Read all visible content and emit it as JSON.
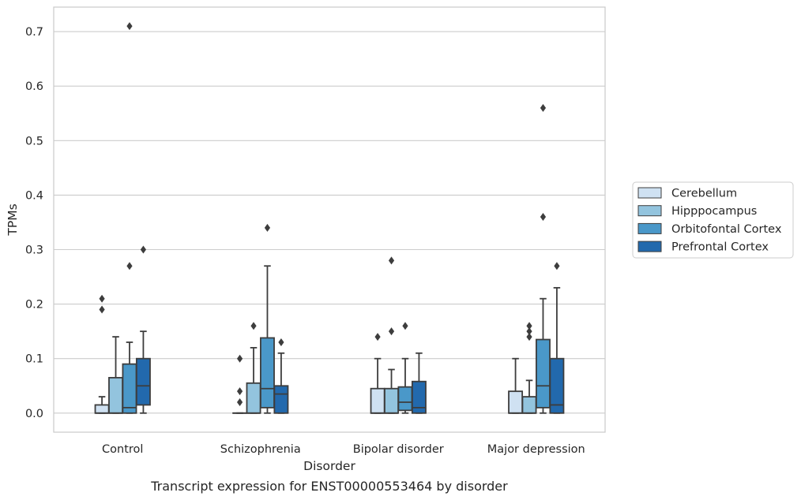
{
  "chart_data": {
    "type": "box",
    "caption": "Transcript expression for ENST00000553464 by disorder",
    "xlabel": "Disorder",
    "ylabel": "TPMs",
    "ylim": [
      -0.035,
      0.745
    ],
    "yticks": [
      0.0,
      0.1,
      0.2,
      0.3,
      0.4,
      0.5,
      0.6,
      0.7
    ],
    "ytick_labels": [
      "0.0",
      "0.1",
      "0.2",
      "0.3",
      "0.4",
      "0.5",
      "0.6",
      "0.7"
    ],
    "grid": "horizontal",
    "legend_placement": "right",
    "categories": [
      "Control",
      "Schizophrenia",
      "Bipolar disorder",
      "Major depression"
    ],
    "series": [
      {
        "name": "Cerebellum",
        "color": "#cfe1f2",
        "boxes": [
          {
            "whisker_low": 0.0,
            "q1": 0.0,
            "median": 0.0,
            "q3": 0.015,
            "whisker_high": 0.03,
            "outliers": [
              0.19,
              0.21
            ]
          },
          {
            "whisker_low": 0.0,
            "q1": 0.0,
            "median": 0.0,
            "q3": 0.0,
            "whisker_high": 0.0,
            "outliers": [
              0.02,
              0.04,
              0.1
            ]
          },
          {
            "whisker_low": 0.0,
            "q1": 0.0,
            "median": 0.0,
            "q3": 0.045,
            "whisker_high": 0.1,
            "outliers": [
              0.14
            ]
          },
          {
            "whisker_low": 0.0,
            "q1": 0.0,
            "median": 0.0,
            "q3": 0.04,
            "whisker_high": 0.1,
            "outliers": []
          }
        ]
      },
      {
        "name": "Hipppocampus",
        "color": "#93c4de",
        "boxes": [
          {
            "whisker_low": 0.0,
            "q1": 0.0,
            "median": 0.0,
            "q3": 0.065,
            "whisker_high": 0.14,
            "outliers": []
          },
          {
            "whisker_low": 0.0,
            "q1": 0.0,
            "median": 0.0,
            "q3": 0.055,
            "whisker_high": 0.12,
            "outliers": [
              0.16
            ]
          },
          {
            "whisker_low": 0.0,
            "q1": 0.0,
            "median": 0.0,
            "q3": 0.045,
            "whisker_high": 0.08,
            "outliers": [
              0.15,
              0.28
            ]
          },
          {
            "whisker_low": 0.0,
            "q1": 0.0,
            "median": 0.0,
            "q3": 0.03,
            "whisker_high": 0.06,
            "outliers": [
              0.14,
              0.15,
              0.16
            ]
          }
        ]
      },
      {
        "name": "Orbitofontal Cortex",
        "color": "#4a98c9",
        "boxes": [
          {
            "whisker_low": 0.0,
            "q1": 0.0,
            "median": 0.01,
            "q3": 0.09,
            "whisker_high": 0.13,
            "outliers": [
              0.27,
              0.71
            ]
          },
          {
            "whisker_low": 0.0,
            "q1": 0.01,
            "median": 0.045,
            "q3": 0.138,
            "whisker_high": 0.27,
            "outliers": [
              0.34
            ]
          },
          {
            "whisker_low": 0.0,
            "q1": 0.005,
            "median": 0.02,
            "q3": 0.048,
            "whisker_high": 0.1,
            "outliers": [
              0.16
            ]
          },
          {
            "whisker_low": 0.0,
            "q1": 0.01,
            "median": 0.05,
            "q3": 0.135,
            "whisker_high": 0.21,
            "outliers": [
              0.36,
              0.56
            ]
          }
        ]
      },
      {
        "name": "Prefrontal Cortex",
        "color": "#2269ad",
        "boxes": [
          {
            "whisker_low": 0.0,
            "q1": 0.015,
            "median": 0.05,
            "q3": 0.1,
            "whisker_high": 0.15,
            "outliers": [
              0.3
            ]
          },
          {
            "whisker_low": 0.0,
            "q1": 0.0,
            "median": 0.035,
            "q3": 0.05,
            "whisker_high": 0.11,
            "outliers": [
              0.13
            ]
          },
          {
            "whisker_low": 0.0,
            "q1": 0.0,
            "median": 0.01,
            "q3": 0.058,
            "whisker_high": 0.11,
            "outliers": []
          },
          {
            "whisker_low": 0.0,
            "q1": 0.0,
            "median": 0.015,
            "q3": 0.1,
            "whisker_high": 0.23,
            "outliers": [
              0.27
            ]
          }
        ]
      }
    ]
  }
}
